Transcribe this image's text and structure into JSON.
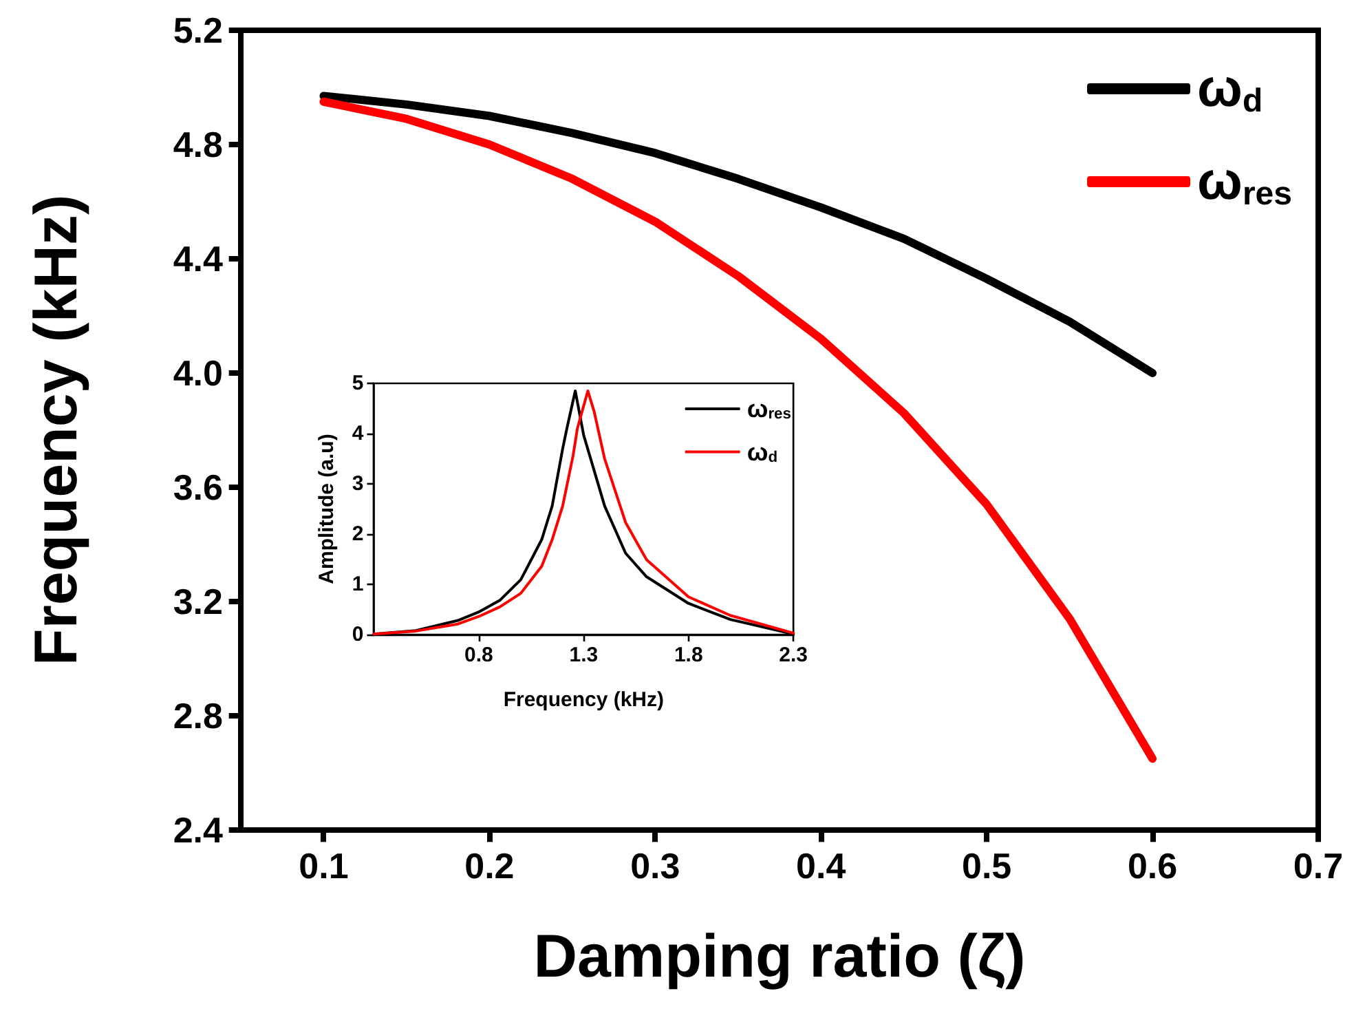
{
  "chart_data": [
    {
      "type": "line",
      "xlabel": "Damping ratio (ζ)",
      "ylabel": "Frequency (kHz)",
      "x": [
        0.1,
        0.15,
        0.2,
        0.25,
        0.3,
        0.35,
        0.4,
        0.45,
        0.5,
        0.55,
        0.6
      ],
      "series": [
        {
          "name": "ω$_{d}$",
          "color": "#000000",
          "values": [
            4.97,
            4.94,
            4.9,
            4.84,
            4.77,
            4.68,
            4.58,
            4.47,
            4.33,
            4.18,
            4.0
          ]
        },
        {
          "name": "ω$_{res}$",
          "color": "#ff0000",
          "values": [
            4.95,
            4.89,
            4.8,
            4.68,
            4.53,
            4.34,
            4.12,
            3.86,
            3.54,
            3.14,
            2.65
          ]
        }
      ],
      "xlim": [
        0.05,
        0.7
      ],
      "xticks": [
        0.1,
        0.2,
        0.3,
        0.4,
        0.5,
        0.6,
        0.7
      ],
      "ylim": [
        2.4,
        5.2
      ],
      "yticks": [
        {
          "value": 2.4,
          "label": "2.4"
        },
        {
          "value": 2.8,
          "label": "2.8"
        },
        {
          "value": 3.2,
          "label": "3.2"
        },
        {
          "value": 3.6,
          "label": "3.6"
        },
        {
          "value": 4,
          "label": "4.0"
        },
        {
          "value": 4.4,
          "label": "4.4"
        },
        {
          "value": 4.8,
          "label": "4.8"
        },
        {
          "value": 5.2,
          "label": "5.2"
        }
      ],
      "legend": "top right",
      "marker": "none",
      "line_style": "solid"
    },
    {
      "type": "line",
      "xlabel": "Frequency (kHz)",
      "ylabel": "Amplitude (a.u)",
      "series": [
        {
          "name": "ω$_{res}$",
          "color": "#000000",
          "x": [
            0.3,
            0.5,
            0.7,
            0.8,
            0.9,
            1.0,
            1.1,
            1.15,
            1.2,
            1.22,
            1.26,
            1.3,
            1.4,
            1.5,
            1.6,
            1.8,
            2.0,
            2.3
          ],
          "values": [
            0.01,
            0.08,
            0.28,
            0.45,
            0.68,
            1.09,
            1.89,
            2.56,
            3.7,
            4.1,
            4.85,
            3.97,
            2.56,
            1.62,
            1.15,
            0.62,
            0.3,
            0.01
          ]
        },
        {
          "name": "ω$_{d}$",
          "color": "#ff0000",
          "x": [
            0.3,
            0.5,
            0.7,
            0.8,
            0.9,
            1.0,
            1.1,
            1.15,
            1.2,
            1.25,
            1.27,
            1.32,
            1.35,
            1.4,
            1.5,
            1.6,
            1.8,
            2.0,
            2.3
          ],
          "values": [
            0.01,
            0.07,
            0.21,
            0.36,
            0.55,
            0.82,
            1.36,
            1.89,
            2.56,
            3.57,
            4.1,
            4.85,
            4.44,
            3.5,
            2.23,
            1.49,
            0.75,
            0.38,
            0.03
          ]
        }
      ],
      "xlim": [
        0.3,
        2.3
      ],
      "xticks": [
        0.8,
        1.3,
        1.8,
        2.3
      ],
      "ylim": [
        0,
        5
      ],
      "yticks": [
        0,
        1,
        2,
        3,
        4,
        5
      ],
      "legend": "top right",
      "marker": "none",
      "line_style": "solid"
    }
  ]
}
